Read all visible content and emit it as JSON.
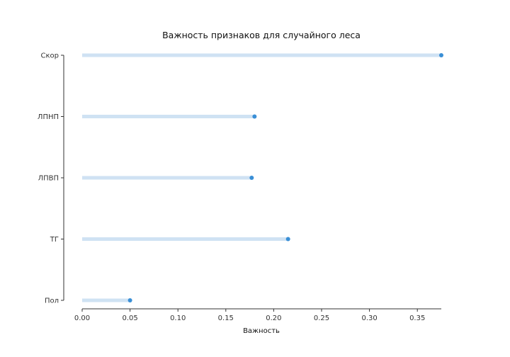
{
  "chart_data": {
    "type": "lollipop",
    "title": "Важность признаков для случайного леса",
    "xlabel": "Важность",
    "ylabel": "",
    "categories": [
      "Скор",
      "ЛПНП",
      "ЛПВП",
      "ТГ",
      "Пол"
    ],
    "values": [
      0.375,
      0.18,
      0.177,
      0.215,
      0.05
    ],
    "xlim": [
      0.0,
      0.375
    ],
    "xticks": [
      0.0,
      0.05,
      0.1,
      0.15,
      0.2,
      0.25,
      0.3,
      0.35
    ],
    "xtick_labels": [
      "0.00",
      "0.05",
      "0.10",
      "0.15",
      "0.20",
      "0.25",
      "0.30",
      "0.35"
    ],
    "grid": false,
    "colors": {
      "stem": "#cfe2f3",
      "marker": "#3a8fd6",
      "axis": "#333333"
    }
  }
}
